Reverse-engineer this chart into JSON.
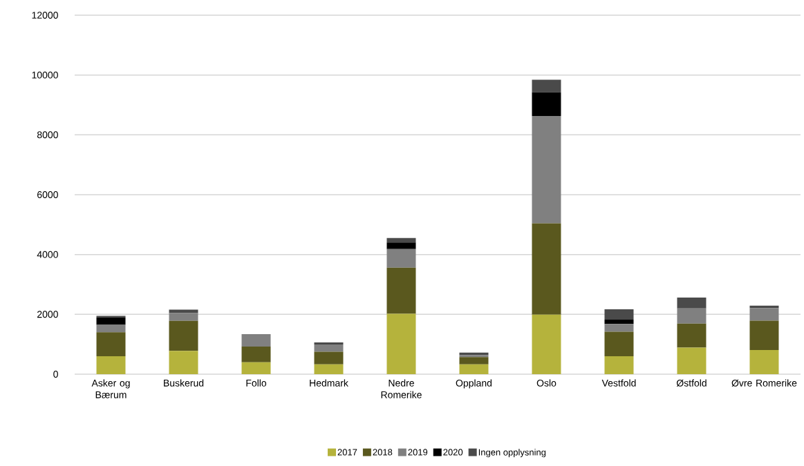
{
  "chart_data": {
    "type": "bar",
    "stacked": true,
    "categories": [
      "Asker og Bærum",
      "Buskerud",
      "Follo",
      "Hedmark",
      "Nedre Romerike",
      "Oppland",
      "Oslo",
      "Vestfold",
      "Østfold",
      "Øvre Romerike"
    ],
    "series": [
      {
        "name": "2017",
        "color": "#b5b33c",
        "values": [
          600,
          780,
          400,
          330,
          2020,
          330,
          1990,
          600,
          890,
          810
        ]
      },
      {
        "name": "2018",
        "color": "#5a581e",
        "values": [
          800,
          1000,
          520,
          420,
          1540,
          240,
          3050,
          820,
          800,
          980
        ]
      },
      {
        "name": "2019",
        "color": "#808080",
        "values": [
          250,
          260,
          420,
          240,
          620,
          70,
          3590,
          260,
          510,
          420
        ]
      },
      {
        "name": "2020",
        "color": "#000000",
        "values": [
          250,
          0,
          0,
          0,
          220,
          0,
          790,
          140,
          0,
          0
        ]
      },
      {
        "name": "Ingen opplysning",
        "color": "#4a4a4a",
        "values": [
          50,
          120,
          0,
          70,
          150,
          80,
          420,
          350,
          360,
          80
        ]
      }
    ],
    "ylim": [
      0,
      12000
    ],
    "yticks": [
      0,
      2000,
      4000,
      6000,
      8000,
      10000,
      12000
    ],
    "grid": "y",
    "legend": "bottom"
  }
}
